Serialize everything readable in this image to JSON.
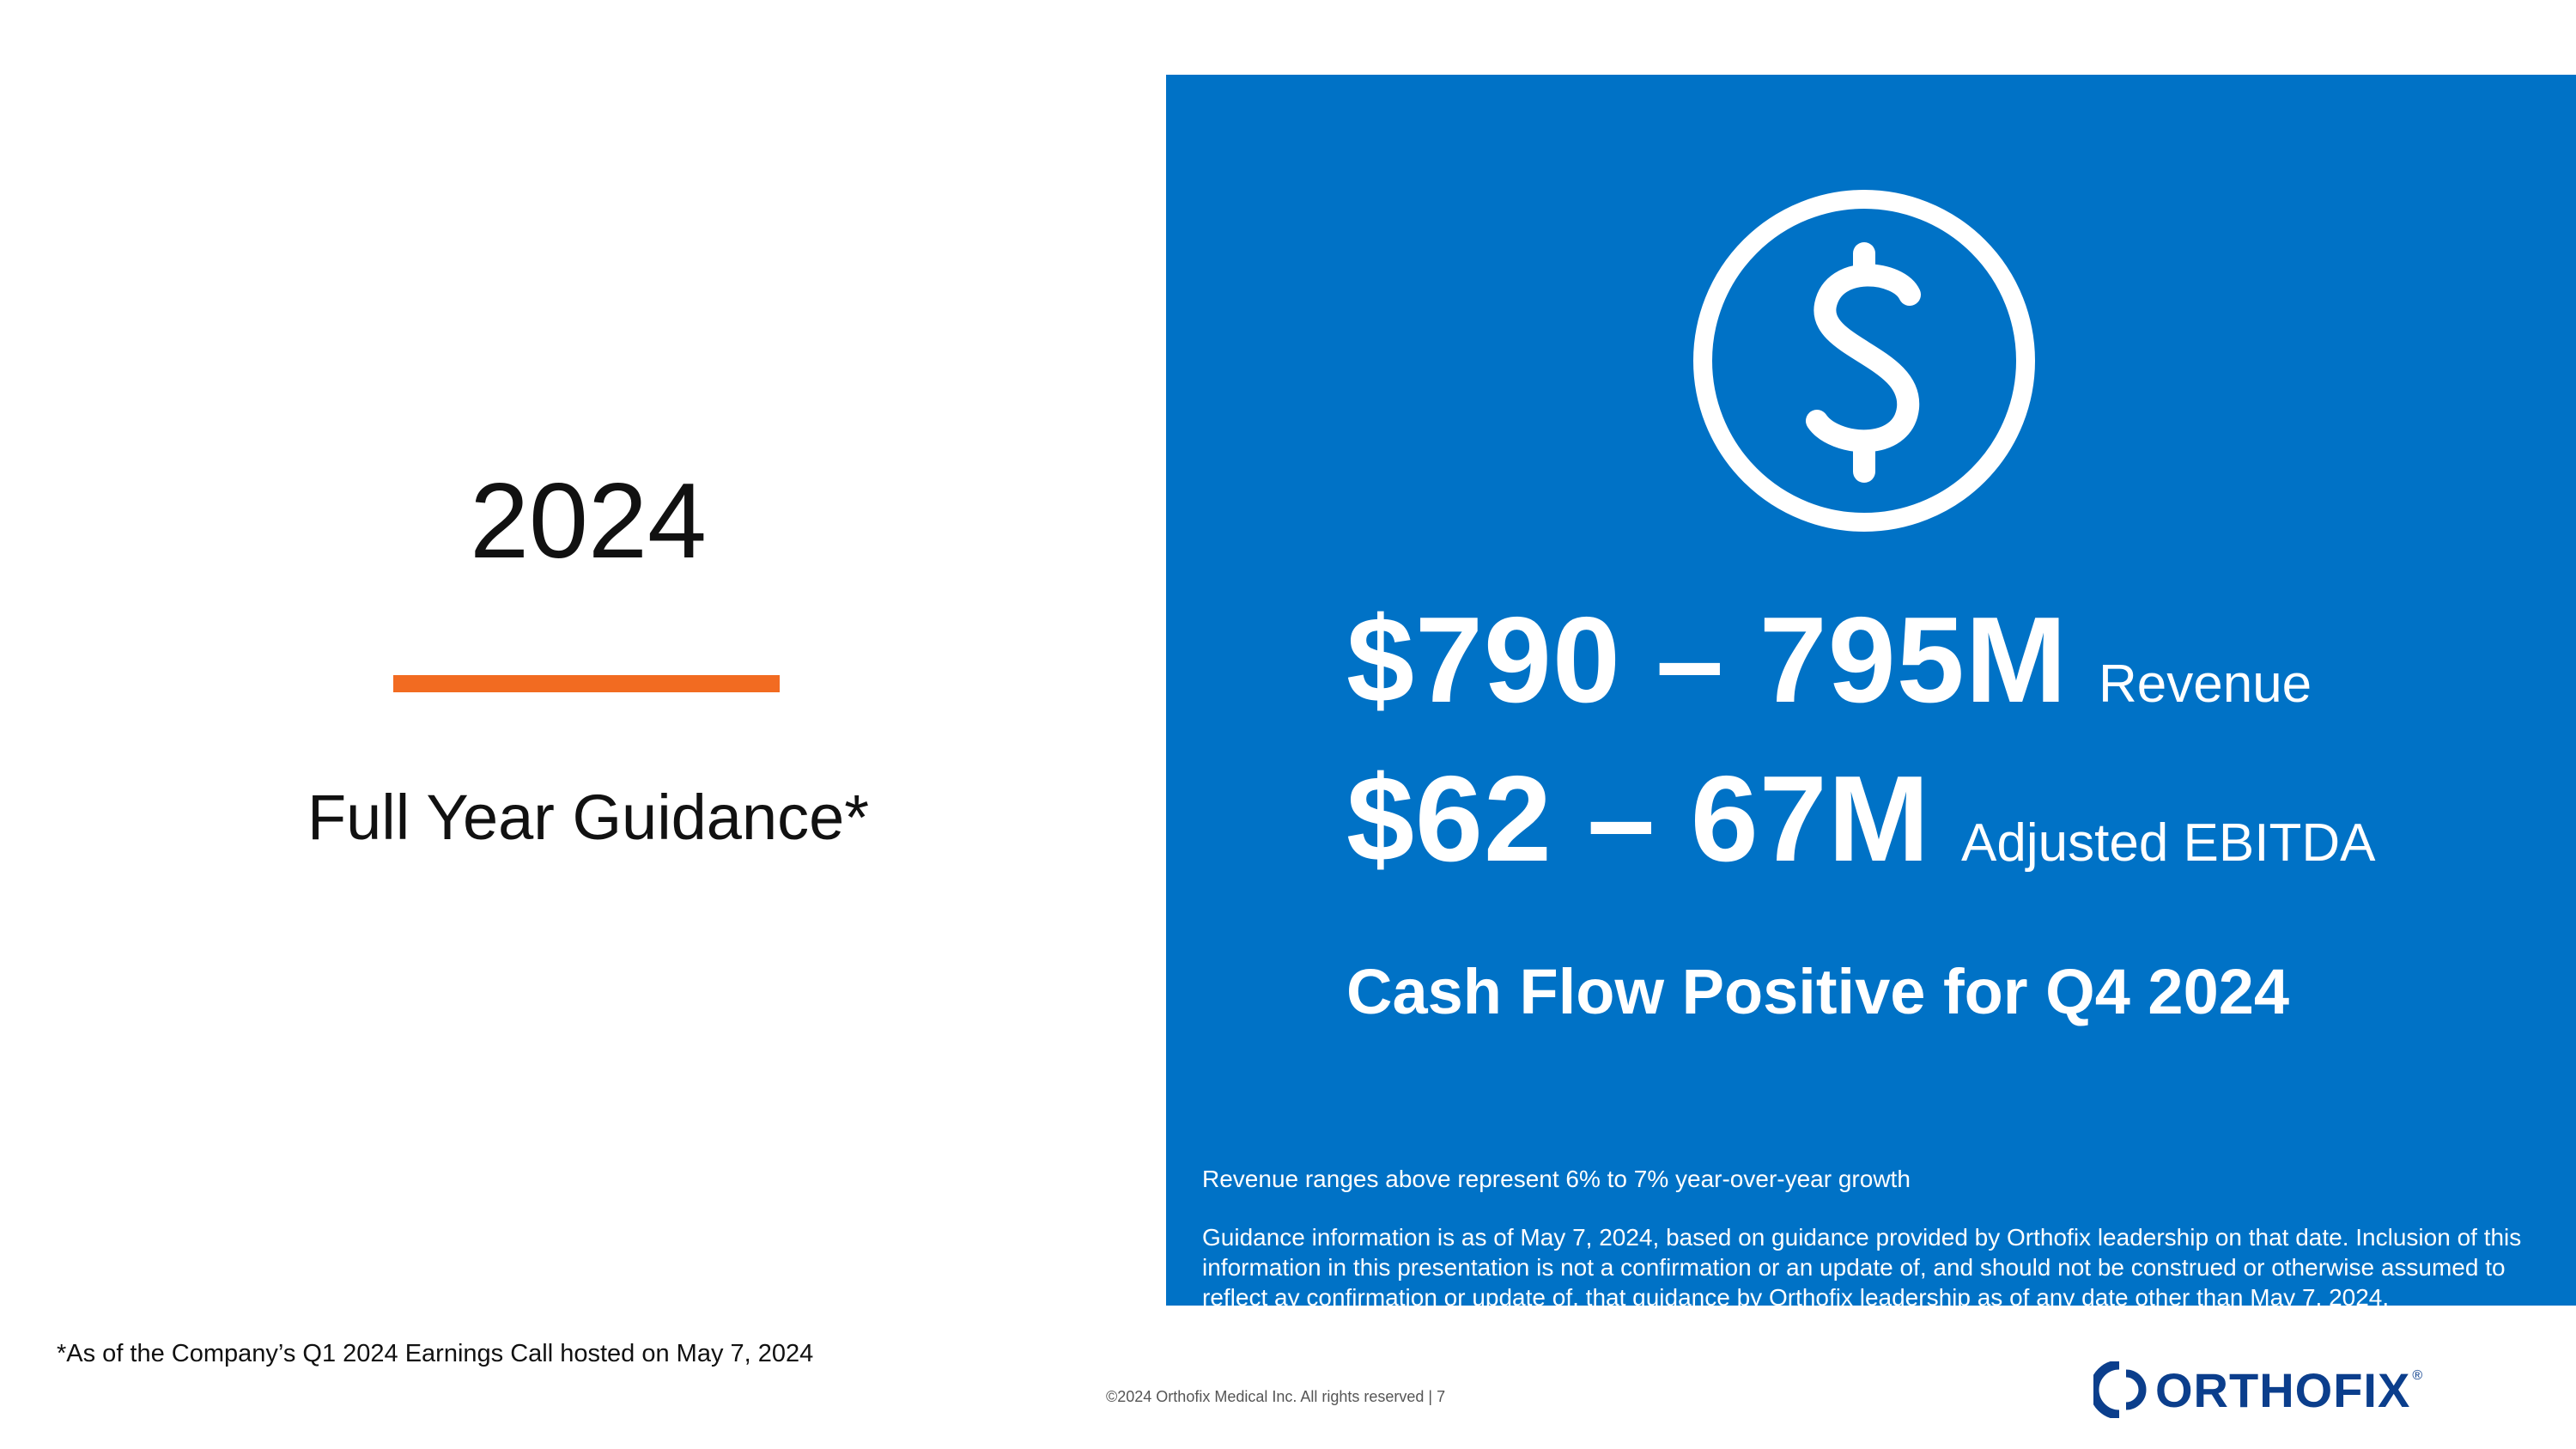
{
  "left": {
    "year": "2024",
    "subtitle": "Full Year Guidance*"
  },
  "panel": {
    "icon": "dollar-circle-icon",
    "metrics": [
      {
        "value": "$790 – 795M",
        "label": "Revenue"
      },
      {
        "value": "$62 – 67M",
        "label": "Adjusted EBITDA"
      }
    ],
    "cashflow": "Cash Flow Positive for Q4 2024",
    "note_growth": "Revenue ranges above represent 6% to 7% year-over-year growth",
    "note_guidance": "Guidance information is as of May 7, 2024, based on guidance provided by Orthofix leadership on that date. Inclusion of this information in this presentation is not a confirmation or an update of, and should not be construed or otherwise assumed to reflect ay confirmation or update of, that guidance by Orthofix leadership as of any date other than May 7, 2024."
  },
  "footer": {
    "footnote": "*As of the Company’s Q1 2024 Earnings Call hosted on May 7, 2024",
    "copyright": "©2024 Orthofix Medical Inc. All rights reserved  |  7",
    "logo_text": "ORTHOFIX",
    "logo_reg": "®"
  },
  "colors": {
    "panel_blue": "#0072C6",
    "accent_orange": "#F26B21",
    "logo_blue": "#0B3E8C",
    "text_dark": "#111111"
  }
}
